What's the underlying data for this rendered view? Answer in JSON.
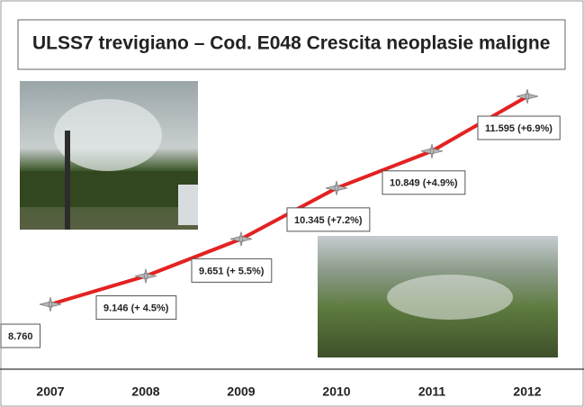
{
  "chart_data": {
    "type": "line",
    "title": "ULSS7 trevigiano  –  Cod. E048  Crescita neoplasie maligne",
    "categories": [
      "2007",
      "2008",
      "2009",
      "2010",
      "2011",
      "2012"
    ],
    "values": [
      8760,
      9146,
      9651,
      10345,
      10849,
      11595
    ],
    "value_labels": [
      "8.760",
      "9.146 (+ 4.5%)",
      "9.651 (+ 5.5%)",
      "10.345 (+7.2%)",
      "10.849 (+4.9%)",
      "11.595 (+6.9%)"
    ],
    "color": "#e32222"
  }
}
